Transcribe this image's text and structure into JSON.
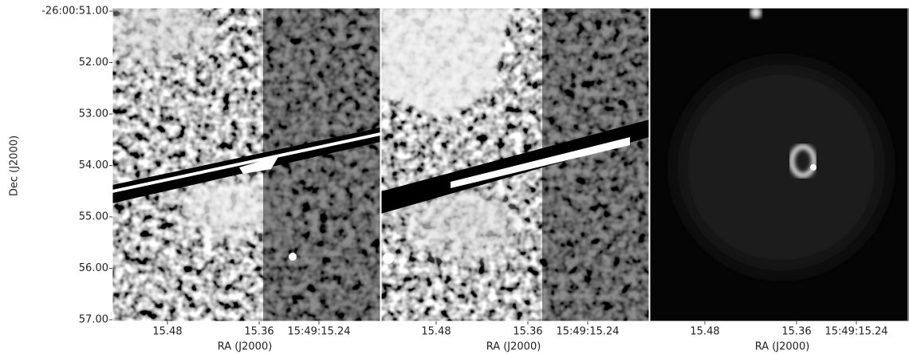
{
  "y_axis": {
    "label": "Dec (J2000)",
    "ticks": [
      "-26:00:51.00",
      "52.00",
      "53.00",
      "54.00",
      "55.00",
      "56.00",
      "57.00"
    ]
  },
  "panels": [
    {
      "x_label": "RA (J2000)",
      "x_ticks": [
        "15.48",
        "15.36",
        "15:49:15.24"
      ]
    },
    {
      "x_label": "RA (J2000)",
      "x_ticks": [
        "15.48",
        "15.36",
        "15:49:15.24"
      ]
    },
    {
      "x_label": "RA (J2000)",
      "x_ticks": [
        "15.48",
        "15.36",
        "15:49:15.24"
      ]
    }
  ]
}
